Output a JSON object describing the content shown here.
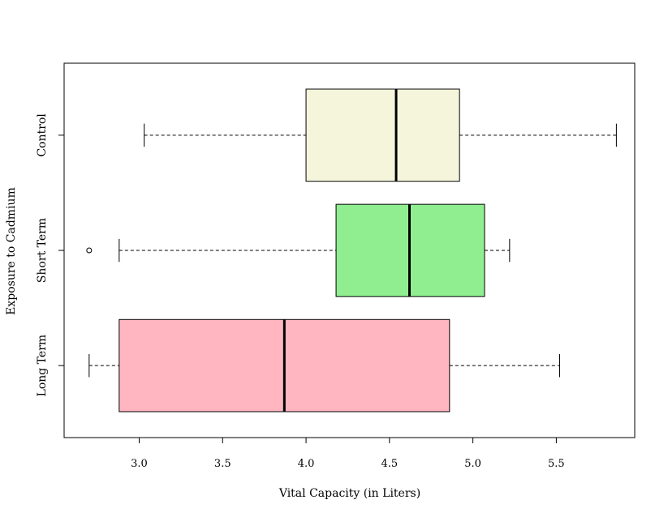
{
  "chart_data": {
    "type": "boxplot",
    "orientation": "horizontal",
    "title": "",
    "xlabel": "Vital Capacity (in Liters)",
    "ylabel": "Exposure to Cadmium",
    "xlim": [
      2.55,
      5.97
    ],
    "xticks": [
      3.0,
      3.5,
      4.0,
      4.5,
      5.0,
      5.5
    ],
    "xtick_labels": [
      "3.0",
      "3.5",
      "4.0",
      "4.5",
      "5.0",
      "5.5"
    ],
    "grid": false,
    "legend": "none",
    "categories": [
      "Long Term",
      "Short Term",
      "Control"
    ],
    "boxes": [
      {
        "label": "Long Term",
        "color": "#ffb6c1",
        "whisker_low": 2.7,
        "q1": 2.88,
        "median": 3.87,
        "q3": 4.86,
        "whisker_high": 5.52,
        "outliers": []
      },
      {
        "label": "Short Term",
        "color": "#90ee90",
        "whisker_low": 2.88,
        "q1": 4.18,
        "median": 4.62,
        "q3": 5.07,
        "whisker_high": 5.22,
        "outliers": [
          2.7
        ]
      },
      {
        "label": "Control",
        "color": "#f5f5dc",
        "whisker_low": 3.03,
        "q1": 4.0,
        "median": 4.54,
        "q3": 4.92,
        "whisker_high": 5.86,
        "outliers": []
      }
    ]
  }
}
